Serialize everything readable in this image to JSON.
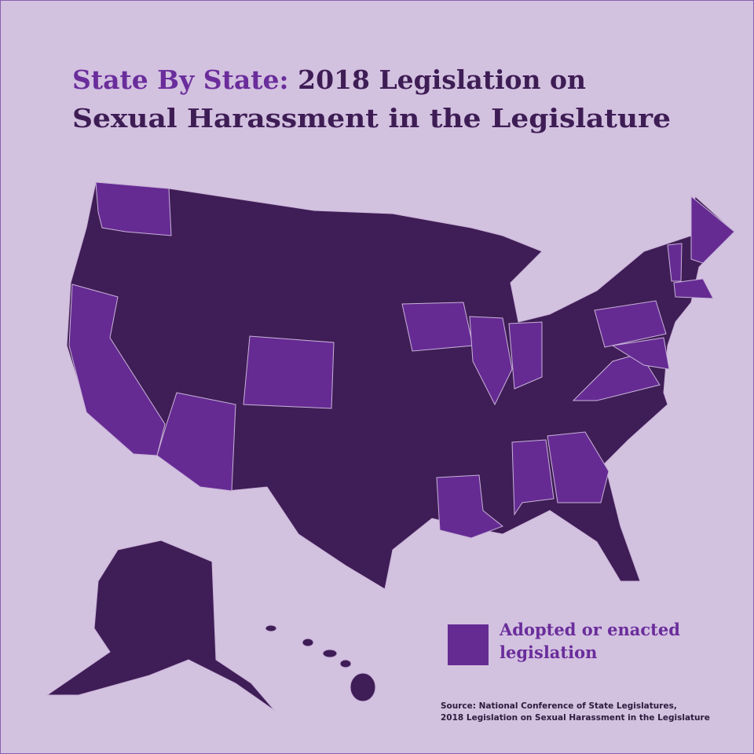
{
  "title": {
    "highlight": "State By State:",
    "line1_rest": "2018 Legislation on",
    "line2": "Sexual Harassment in the Legislature"
  },
  "legend": {
    "line1": "Adopted or enacted",
    "line2": "legislation"
  },
  "source": {
    "line1": "Source: National Conference of State Legislatures,",
    "line2": "2018 Legislation on Sexual Harassment in the Legislature"
  }
}
